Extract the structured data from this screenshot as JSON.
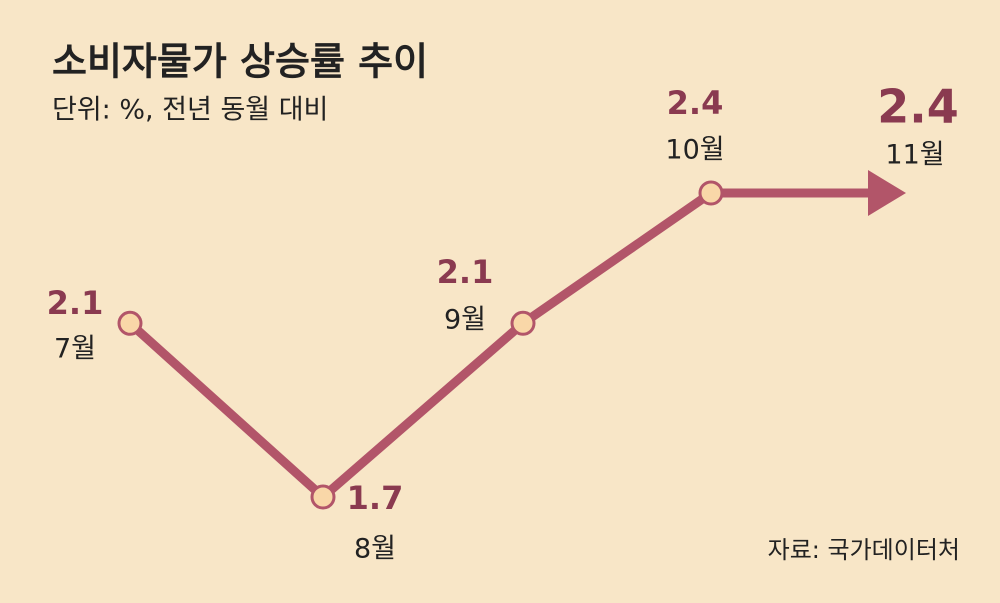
{
  "chart_data": {
    "type": "line",
    "title": "소비자물가 상승률 추이",
    "subtitle": "단위: %, 전년 동월 대비",
    "source": "자료: 국가데이터처",
    "categories": [
      "7월",
      "8월",
      "9월",
      "10월",
      "11월"
    ],
    "values": [
      2.1,
      1.7,
      2.1,
      2.4,
      2.4
    ],
    "color": "#b25569",
    "label_color": "#8a3a50",
    "marker_color": "#f9d7a8"
  }
}
